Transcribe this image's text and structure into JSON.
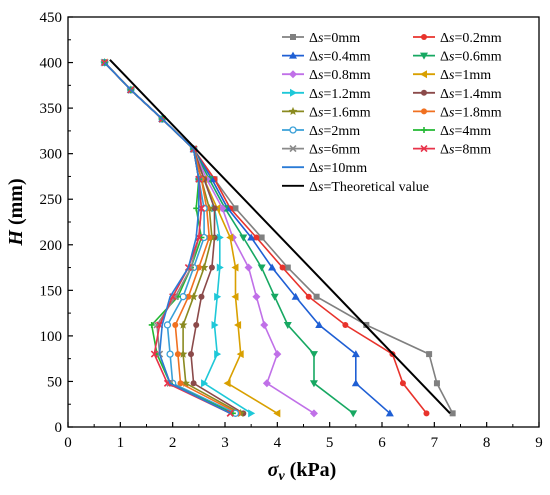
{
  "chart_data": {
    "type": "line",
    "xlabel": {
      "symbol": "σ",
      "sub": "v",
      "unit": " (kPa)"
    },
    "ylabel": {
      "symbol": "H",
      "unit": " (mm)"
    },
    "xlim": [
      0,
      9
    ],
    "ylim": [
      0,
      450
    ],
    "xticks": [
      0,
      1,
      2,
      3,
      4,
      5,
      6,
      7,
      8,
      9
    ],
    "yticks": [
      0,
      50,
      100,
      150,
      200,
      250,
      300,
      350,
      400,
      450
    ],
    "grid": false,
    "legend_position": "top-right",
    "legend_prefix": "Δs",
    "series": [
      {
        "name": "Δs=0mm",
        "color": "#808080",
        "marker": "square",
        "x": [
          0.7,
          1.2,
          1.8,
          2.4,
          2.8,
          3.2,
          3.7,
          4.2,
          4.75,
          5.7,
          6.9,
          7.05,
          7.35
        ],
        "y": [
          400,
          370,
          338,
          305,
          272,
          240,
          208,
          175,
          143,
          112,
          80,
          48,
          15
        ]
      },
      {
        "name": "Δs=0.2mm",
        "color": "#e8332c",
        "marker": "circle",
        "x": [
          0.7,
          1.2,
          1.8,
          2.4,
          2.8,
          3.1,
          3.6,
          4.1,
          4.6,
          5.3,
          6.2,
          6.4,
          6.85
        ],
        "y": [
          400,
          370,
          338,
          305,
          272,
          240,
          208,
          175,
          143,
          112,
          80,
          48,
          15
        ]
      },
      {
        "name": "Δs=0.4mm",
        "color": "#1f5fd4",
        "marker": "triangle-up",
        "x": [
          0.7,
          1.2,
          1.8,
          2.4,
          2.75,
          3.05,
          3.5,
          3.9,
          4.35,
          4.8,
          5.5,
          5.5,
          6.15
        ],
        "y": [
          400,
          370,
          338,
          305,
          272,
          240,
          208,
          175,
          143,
          112,
          80,
          48,
          15
        ]
      },
      {
        "name": "Δs=0.6mm",
        "color": "#17a862",
        "marker": "triangle-down",
        "x": [
          0.7,
          1.2,
          1.8,
          2.4,
          2.7,
          3.0,
          3.35,
          3.7,
          3.95,
          4.2,
          4.7,
          4.7,
          5.45
        ],
        "y": [
          400,
          370,
          338,
          305,
          272,
          240,
          208,
          175,
          143,
          112,
          80,
          48,
          15
        ]
      },
      {
        "name": "Δs=0.8mm",
        "color": "#c070e8",
        "marker": "diamond",
        "x": [
          0.7,
          1.2,
          1.8,
          2.4,
          2.65,
          2.95,
          3.15,
          3.45,
          3.6,
          3.75,
          4.0,
          3.8,
          4.7
        ],
        "y": [
          400,
          370,
          338,
          305,
          272,
          240,
          208,
          175,
          143,
          112,
          80,
          48,
          15
        ]
      },
      {
        "name": "Δs=1mm",
        "color": "#d9a000",
        "marker": "triangle-left",
        "x": [
          0.7,
          1.2,
          1.8,
          2.4,
          2.6,
          2.85,
          3.1,
          3.2,
          3.2,
          3.25,
          3.3,
          3.05,
          4.0
        ],
        "y": [
          400,
          370,
          338,
          305,
          272,
          240,
          208,
          175,
          143,
          112,
          80,
          48,
          15
        ]
      },
      {
        "name": "Δs=1.2mm",
        "color": "#1ec8d8",
        "marker": "triangle-right",
        "x": [
          0.7,
          1.2,
          1.8,
          2.4,
          2.6,
          2.8,
          2.9,
          2.9,
          2.85,
          2.8,
          2.85,
          2.6,
          3.5
        ],
        "y": [
          400,
          370,
          338,
          305,
          272,
          240,
          208,
          175,
          143,
          112,
          80,
          48,
          15
        ]
      },
      {
        "name": "Δs=1.4mm",
        "color": "#8b4a4a",
        "marker": "circle",
        "x": [
          0.7,
          1.2,
          1.8,
          2.4,
          2.6,
          2.8,
          2.8,
          2.75,
          2.55,
          2.45,
          2.35,
          2.4,
          3.35
        ],
        "y": [
          400,
          370,
          338,
          305,
          272,
          240,
          208,
          175,
          143,
          112,
          80,
          48,
          15
        ]
      },
      {
        "name": "Δs=1.6mm",
        "color": "#8a8a20",
        "marker": "star",
        "x": [
          0.7,
          1.2,
          1.8,
          2.4,
          2.55,
          2.7,
          2.75,
          2.6,
          2.4,
          2.2,
          2.2,
          2.25,
          3.3
        ],
        "y": [
          400,
          370,
          338,
          305,
          272,
          240,
          208,
          175,
          143,
          112,
          80,
          48,
          15
        ]
      },
      {
        "name": "Δs=1.8mm",
        "color": "#f07020",
        "marker": "circle",
        "x": [
          0.7,
          1.2,
          1.8,
          2.4,
          2.55,
          2.65,
          2.7,
          2.5,
          2.3,
          2.05,
          2.1,
          2.15,
          3.25
        ],
        "y": [
          400,
          370,
          338,
          305,
          272,
          240,
          208,
          175,
          143,
          112,
          80,
          48,
          15
        ]
      },
      {
        "name": "Δs=2mm",
        "color": "#3aa0d8",
        "marker": "circle-hollow",
        "x": [
          0.7,
          1.2,
          1.8,
          2.4,
          2.5,
          2.6,
          2.6,
          2.4,
          2.2,
          1.9,
          1.95,
          2.0,
          3.2
        ],
        "y": [
          400,
          370,
          338,
          305,
          272,
          240,
          208,
          175,
          143,
          112,
          80,
          48,
          15
        ]
      },
      {
        "name": "Δs=4mm",
        "color": "#22b833",
        "marker": "plus",
        "x": [
          0.7,
          1.2,
          1.8,
          2.4,
          2.5,
          2.45,
          2.55,
          2.35,
          2.1,
          1.6,
          1.7,
          1.95,
          3.15
        ],
        "y": [
          400,
          370,
          338,
          305,
          272,
          240,
          208,
          175,
          143,
          112,
          80,
          48,
          15
        ]
      },
      {
        "name": "Δs=6mm",
        "color": "#8a8a8a",
        "marker": "x",
        "x": [
          0.7,
          1.2,
          1.8,
          2.4,
          2.5,
          2.55,
          2.5,
          2.35,
          2.05,
          1.7,
          1.75,
          1.95,
          3.1
        ],
        "y": [
          400,
          370,
          338,
          305,
          272,
          240,
          208,
          175,
          143,
          112,
          80,
          48,
          15
        ]
      },
      {
        "name": "Δs=8mm",
        "color": "#e8334a",
        "marker": "x",
        "x": [
          0.7,
          1.2,
          1.8,
          2.4,
          2.5,
          2.55,
          2.5,
          2.3,
          2.0,
          1.75,
          1.65,
          1.9,
          3.1
        ],
        "y": [
          400,
          370,
          338,
          305,
          272,
          240,
          208,
          175,
          143,
          112,
          80,
          48,
          15
        ]
      },
      {
        "name": "Δs=10mm",
        "color": "#2a7bd6",
        "marker": "none",
        "x": [
          0.7,
          1.2,
          1.8,
          2.4,
          2.5,
          2.5,
          2.45,
          2.3,
          1.95,
          1.8,
          1.75,
          1.95,
          3.1
        ],
        "y": [
          400,
          370,
          338,
          305,
          272,
          240,
          208,
          175,
          143,
          112,
          80,
          48,
          15
        ]
      },
      {
        "name": "Δs=Theoretical value",
        "color": "#000000",
        "marker": "none",
        "x": [
          0.8,
          7.3
        ],
        "y": [
          403,
          15
        ]
      }
    ]
  }
}
